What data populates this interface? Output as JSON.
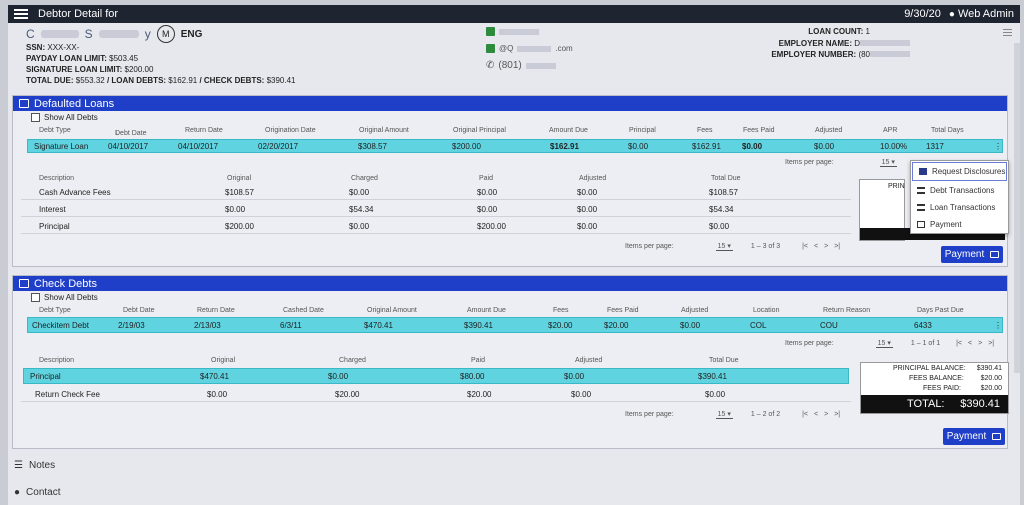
{
  "topbar": {
    "title": "Debtor Detail for",
    "date": "9/30/20",
    "user": "Web Admin"
  },
  "debtor": {
    "name_initial": "C",
    "name_mid": "S",
    "name_end": "y",
    "marital_icon": "M",
    "language": "ENG",
    "ssn_label": "SSN:",
    "ssn_value": "XXX-XX-",
    "payday_label": "PAYDAY LOAN LIMIT:",
    "payday_value": "$503.45",
    "signature_label": "SIGNATURE LOAN LIMIT:",
    "signature_value": "$200.00",
    "total_due_label": "TOTAL DUE:",
    "total_due_value": "$553.32",
    "loan_debts_label": "/ LOAN DEBTS:",
    "loan_debts_value": "$162.91",
    "check_debts_label": "/ CHECK DEBTS:",
    "check_debts_value": "$390.41",
    "email_partial": "@Q",
    "email_suffix": ".com",
    "phone_prefix": "(801)",
    "loan_count_label": "LOAN COUNT:",
    "loan_count_value": "1",
    "employer_name_label": "EMPLOYER NAME:",
    "employer_name_value": "D",
    "employer_number_label": "EMPLOYER NUMBER:",
    "employer_number_value": "(80"
  },
  "defaulted": {
    "title": "Defaulted Loans",
    "show_all": "Show All Debts",
    "headers": [
      "Debt Type",
      "Debt Date",
      "Return Date",
      "Origination Date",
      "Original Amount",
      "Original Principal",
      "Amount Due",
      "Principal",
      "Fees",
      "Fees Paid",
      "Adjusted",
      "APR",
      "Total Days"
    ],
    "row": [
      "Signature Loan",
      "04/10/2017",
      "04/10/2017",
      "02/20/2017",
      "$308.57",
      "$200.00",
      "$162.91",
      "$0.00",
      "$162.91",
      "$0.00",
      "$0.00",
      "10.00%",
      "1317"
    ],
    "items_per_page": "Items per page:",
    "per_page_value": "15",
    "sub_headers": [
      "Description",
      "Original",
      "Charged",
      "Paid",
      "Adjusted",
      "Total Due"
    ],
    "sub_rows": [
      [
        "Cash Advance Fees",
        "$108.57",
        "$0.00",
        "$0.00",
        "$0.00",
        "$108.57"
      ],
      [
        "Interest",
        "$0.00",
        "$54.34",
        "$0.00",
        "$0.00",
        "$54.34"
      ],
      [
        "Principal",
        "$200.00",
        "$0.00",
        "$200.00",
        "$0.00",
        "$0.00"
      ]
    ],
    "sub_per_page": "Items per page:",
    "sub_per_page_value": "15",
    "sub_range": "1 – 3 of 3",
    "summary_partial": "PRIN",
    "payment": "Payment"
  },
  "dropdown": {
    "items": [
      "Request Disclosures",
      "Debt Transactions",
      "Loan Transactions",
      "Payment"
    ]
  },
  "check": {
    "title": "Check Debts",
    "show_all": "Show All Debts",
    "headers": [
      "Debt Type",
      "Debt Date",
      "Return Date",
      "Cashed Date",
      "Original Amount",
      "Amount Due",
      "Fees",
      "Fees Paid",
      "Adjusted",
      "Location",
      "Return Reason",
      "Days Past Due"
    ],
    "row": [
      "Checkitem Debt",
      "2/19/03",
      "2/13/03",
      "6/3/11",
      "$470.41",
      "$390.41",
      "$20.00",
      "$20.00",
      "$0.00",
      "COL",
      "COU",
      "6433"
    ],
    "items_per_page": "Items per page:",
    "per_page_value": "15",
    "range": "1 – 1 of 1",
    "sub_headers": [
      "Description",
      "Original",
      "Charged",
      "Paid",
      "Adjusted",
      "Total Due"
    ],
    "sub_rows": [
      [
        "Principal",
        "$470.41",
        "$0.00",
        "$80.00",
        "$0.00",
        "$390.41"
      ],
      [
        "Return Check Fee",
        "$0.00",
        "$20.00",
        "$20.00",
        "$0.00",
        "$0.00"
      ]
    ],
    "sub_per_page": "Items per page:",
    "sub_per_page_value": "15",
    "sub_range": "1 – 2 of 2",
    "summary": {
      "principal_label": "PRINCIPAL BALANCE:",
      "principal_value": "$390.41",
      "fees_label": "FEES BALANCE:",
      "fees_value": "$20.00",
      "fees_paid_label": "FEES PAID:",
      "fees_paid_value": "$20.00",
      "total_label": "TOTAL:",
      "total_value": "$390.41"
    },
    "payment": "Payment"
  },
  "footer": {
    "notes": "Notes",
    "contact": "Contact"
  }
}
